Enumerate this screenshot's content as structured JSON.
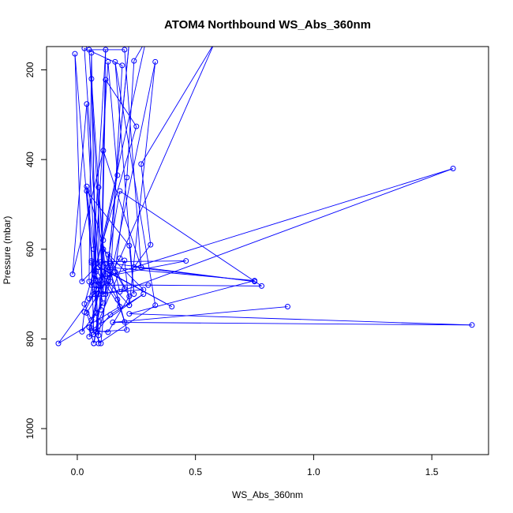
{
  "chart_data": {
    "type": "line",
    "title": "ATOM4 Northbound WS_Abs_360nm",
    "xlabel": "WS_Abs_360nm",
    "ylabel": "Pressure (mbar)",
    "xlim": [
      -0.13,
      1.74
    ],
    "ylim": [
      1058,
      148
    ],
    "y_reversed": true,
    "xticks": [
      0.0,
      0.5,
      1.0,
      1.5
    ],
    "xtick_labels": [
      "0.0",
      "0.5",
      "1.0",
      "1.5"
    ],
    "yticks": [
      200,
      400,
      600,
      800,
      1000
    ],
    "ytick_labels": [
      "200",
      "400",
      "600",
      "800",
      "1000"
    ],
    "grid": false,
    "marker": "open-circle",
    "color": "#0000ff",
    "series": [
      {
        "values": [
          [
            0.89,
            728
          ],
          [
            0.15,
            763
          ],
          [
            1.67,
            769
          ],
          [
            0.22,
            744
          ],
          [
            0.75,
            670
          ],
          [
            0.13,
            640
          ],
          [
            0.22,
            136
          ],
          [
            0.1,
            810
          ],
          [
            0.06,
            776
          ],
          [
            0.04,
            742
          ],
          [
            0.18,
            620
          ],
          [
            0.58,
            140
          ],
          [
            0.27,
            410
          ],
          [
            0.31,
            590
          ],
          [
            0.24,
            640
          ],
          [
            0.75,
            672
          ],
          [
            0.06,
            626
          ],
          [
            0.07,
            790
          ],
          [
            0.05,
            795
          ],
          [
            0.09,
            700
          ],
          [
            0.11,
            580
          ],
          [
            0.17,
            435
          ],
          [
            0.13,
            182
          ],
          [
            0.07,
            680
          ],
          [
            -0.01,
            164
          ],
          [
            0.02,
            672
          ],
          [
            0.1,
            628
          ],
          [
            0.46,
            626
          ],
          [
            0.07,
            666
          ],
          [
            0.29,
            135
          ],
          [
            0.24,
            180
          ],
          [
            0.21,
            440
          ],
          [
            0.16,
            650
          ],
          [
            0.18,
            695
          ],
          [
            1.59,
            420
          ],
          [
            0.12,
            660
          ],
          [
            0.09,
            462
          ],
          [
            0.09,
            640
          ],
          [
            0.17,
            712
          ],
          [
            0.2,
            762
          ],
          [
            0.14,
            650
          ],
          [
            0.12,
            700
          ],
          [
            0.06,
            220
          ],
          [
            0.08,
            650
          ],
          [
            0.05,
            710
          ],
          [
            0.13,
            672
          ],
          [
            0.22,
            725
          ],
          [
            0.33,
            182
          ],
          [
            0.09,
            792
          ],
          [
            0.04,
            276
          ],
          [
            -0.02,
            656
          ],
          [
            0.11,
            380
          ],
          [
            0.27,
            640
          ],
          [
            0.2,
            155
          ],
          [
            0.05,
            155
          ],
          [
            0.11,
            700
          ],
          [
            0.2,
            688
          ],
          [
            0.14,
            630
          ],
          [
            0.09,
            680
          ],
          [
            0.3,
            680
          ],
          [
            0.78,
            682
          ],
          [
            0.18,
            470
          ],
          [
            0.07,
            810
          ],
          [
            0.12,
            632
          ],
          [
            0.06,
            758
          ],
          [
            0.03,
            722
          ],
          [
            0.25,
            326
          ],
          [
            0.12,
            222
          ],
          [
            0.1,
            735
          ],
          [
            0.04,
            470
          ],
          [
            0.22,
            592
          ],
          [
            0.24,
            700
          ],
          [
            0.16,
            182
          ],
          [
            0.33,
            725
          ],
          [
            0.09,
            810
          ],
          [
            0.04,
            460
          ],
          [
            0.21,
            780
          ],
          [
            0.08,
            784
          ],
          [
            0.14,
            746
          ],
          [
            0.28,
            700
          ],
          [
            0.06,
            780
          ],
          [
            0.13,
            785
          ],
          [
            0.22,
            705
          ],
          [
            0.13,
            612
          ],
          [
            0.14,
            672
          ],
          [
            0.19,
            190
          ],
          [
            0.03,
            152
          ],
          [
            0.09,
            640
          ],
          [
            0.4,
            728
          ],
          [
            0.06,
            630
          ],
          [
            0.18,
            728
          ],
          [
            -0.08,
            810
          ],
          [
            0.07,
            700
          ],
          [
            0.28,
            690
          ],
          [
            0.11,
            600
          ],
          [
            0.1,
            690
          ],
          [
            0.07,
            648
          ],
          [
            0.07,
            600
          ],
          [
            0.12,
            155
          ],
          [
            0.1,
            670
          ],
          [
            0.03,
            740
          ],
          [
            0.02,
            784
          ],
          [
            0.11,
            720
          ],
          [
            0.08,
            670
          ],
          [
            0.08,
            690
          ],
          [
            0.07,
            700
          ],
          [
            0.06,
            680
          ],
          [
            0.05,
            672
          ],
          [
            0.06,
            162
          ],
          [
            0.08,
            742
          ],
          [
            0.05,
            774
          ],
          [
            0.07,
            810
          ],
          [
            0.09,
            760
          ],
          [
            0.2,
            625
          ],
          [
            0.22,
            725
          ]
        ]
      }
    ]
  }
}
